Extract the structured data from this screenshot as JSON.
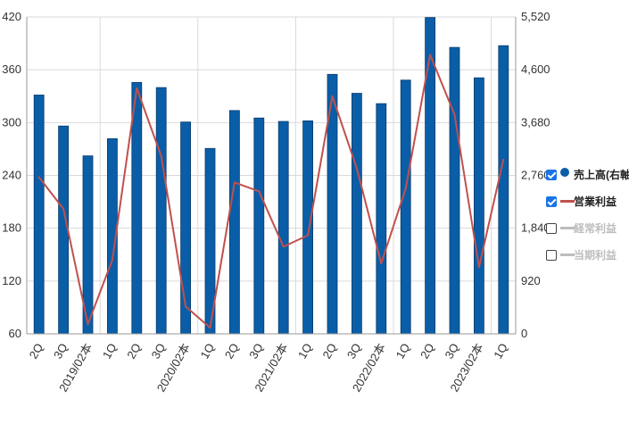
{
  "chart_data": {
    "type": "bar+line",
    "categories": [
      "2Q",
      "3Q",
      "2019/02本",
      "1Q",
      "2Q",
      "3Q",
      "2020/02本",
      "1Q",
      "2Q",
      "3Q",
      "2021/02本",
      "1Q",
      "2Q",
      "3Q",
      "2022/02本",
      "1Q",
      "2Q",
      "3Q",
      "2023/02本",
      "1Q"
    ],
    "left_axis": {
      "ylim": [
        60,
        420
      ],
      "ticks": [
        "60",
        "120",
        "180",
        "240",
        "300",
        "360",
        "420"
      ]
    },
    "right_axis": {
      "ylim": [
        0,
        5520
      ],
      "ticks": [
        "0",
        "920",
        "1,840",
        "2,760",
        "3,680",
        "4,600",
        "5,520"
      ]
    },
    "series": [
      {
        "name": "売上高(右軸)",
        "type": "bar",
        "axis": "right",
        "color": "#0a5ea8",
        "values": [
          4160,
          3620,
          3100,
          3400,
          4380,
          4290,
          3690,
          3230,
          3890,
          3760,
          3700,
          3710,
          4520,
          4190,
          4010,
          4420,
          5510,
          4990,
          4460,
          5020
        ]
      },
      {
        "name": "営業利益",
        "type": "line",
        "axis": "left",
        "color": "#c0504d",
        "values": [
          238,
          202,
          71,
          144,
          339,
          262,
          91,
          67,
          232,
          222,
          159,
          172,
          330,
          248,
          140,
          225,
          377,
          309,
          136,
          258
        ]
      }
    ],
    "legend": [
      {
        "label": "売上高(右軸)",
        "checked": true,
        "marker": "dot",
        "color": "#0a5ea8",
        "enabled": true
      },
      {
        "label": "営業利益",
        "checked": true,
        "marker": "line",
        "color": "#c0504d",
        "enabled": true
      },
      {
        "label": "経常利益",
        "checked": false,
        "marker": "line",
        "color": "#bdbdbd",
        "enabled": false
      },
      {
        "label": "当期利益",
        "checked": false,
        "marker": "line",
        "color": "#bdbdbd",
        "enabled": false
      }
    ],
    "legend_position": "right",
    "grid": true
  }
}
